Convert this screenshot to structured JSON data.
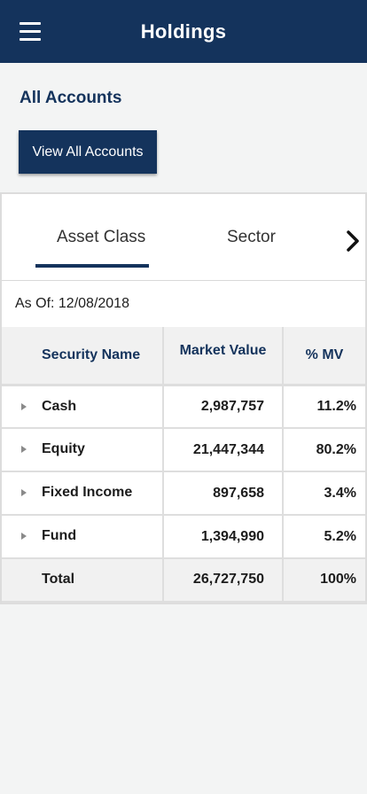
{
  "header": {
    "title": "Holdings"
  },
  "accounts": {
    "title": "All Accounts",
    "view_button": "View All Accounts"
  },
  "tabs": [
    {
      "label": "Asset Class",
      "active": true
    },
    {
      "label": "Sector",
      "active": false
    }
  ],
  "as_of": "As Of: 12/08/2018",
  "table": {
    "columns": [
      "Security Name",
      "Market Value",
      "% MV"
    ],
    "rows": [
      {
        "name": "Cash",
        "market_value": "2,987,757",
        "pct_mv": "11.2%"
      },
      {
        "name": "Equity",
        "market_value": "21,447,344",
        "pct_mv": "80.2%"
      },
      {
        "name": "Fixed Income",
        "market_value": "897,658",
        "pct_mv": "3.4%"
      },
      {
        "name": "Fund",
        "market_value": "1,394,990",
        "pct_mv": "5.2%"
      }
    ],
    "total": {
      "name": "Total",
      "market_value": "26,727,750",
      "pct_mv": "100%"
    }
  },
  "colors": {
    "primary": "#14335c",
    "background": "#f3f4f4"
  },
  "icons": {
    "menu": "menu-icon",
    "next": "chevron-right-icon",
    "expand": "caret-right-icon"
  }
}
